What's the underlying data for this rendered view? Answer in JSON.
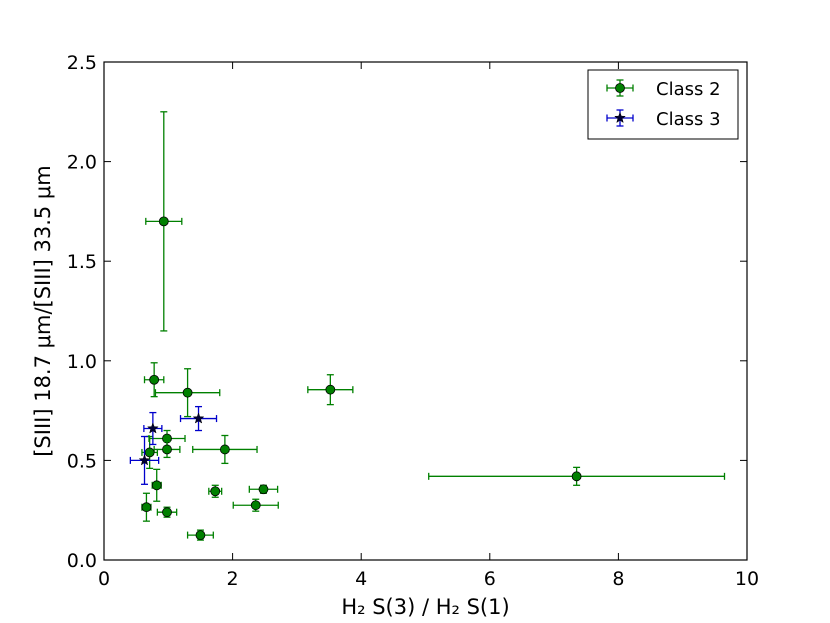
{
  "chart_data": {
    "type": "scatter",
    "xlim": [
      0,
      10
    ],
    "ylim": [
      0.0,
      2.5
    ],
    "xticks": [
      "0",
      "2",
      "4",
      "6",
      "8",
      "10"
    ],
    "yticks": [
      "0.0",
      "0.5",
      "1.0",
      "1.5",
      "2.0",
      "2.5"
    ],
    "xlabel": "H₂ S(3) / H₂ S(1)",
    "ylabel": "[SIII] 18.7 μm/[SIII] 33.5 μm",
    "grid": false,
    "legend_position": "top-right",
    "series": [
      {
        "name": "Class 2",
        "color": "#008000",
        "marker": "circle",
        "points": [
          {
            "x": 0.93,
            "y": 1.7,
            "xerr": 0.28,
            "yerr": 0.55
          },
          {
            "x": 0.78,
            "y": 0.905,
            "xerr": 0.15,
            "yerr": 0.085
          },
          {
            "x": 1.3,
            "y": 0.84,
            "xerr": 0.5,
            "yerr": 0.12
          },
          {
            "x": 3.52,
            "y": 0.855,
            "xerr": 0.35,
            "yerr": 0.075
          },
          {
            "x": 0.98,
            "y": 0.61,
            "xerr": 0.28,
            "yerr": 0.04
          },
          {
            "x": 0.98,
            "y": 0.555,
            "xerr": 0.2,
            "yerr": 0.04
          },
          {
            "x": 1.88,
            "y": 0.555,
            "xerr": 0.5,
            "yerr": 0.07
          },
          {
            "x": 7.35,
            "y": 0.42,
            "xerr": 2.3,
            "yerr": 0.045
          },
          {
            "x": 0.71,
            "y": 0.54,
            "xerr": 0.12,
            "yerr": 0.08
          },
          {
            "x": 0.82,
            "y": 0.375,
            "xerr": 0.07,
            "yerr": 0.08
          },
          {
            "x": 0.66,
            "y": 0.265,
            "xerr": 0.07,
            "yerr": 0.07
          },
          {
            "x": 0.98,
            "y": 0.24,
            "xerr": 0.15,
            "yerr": 0.025
          },
          {
            "x": 1.73,
            "y": 0.345,
            "xerr": 0.1,
            "yerr": 0.03
          },
          {
            "x": 2.48,
            "y": 0.355,
            "xerr": 0.22,
            "yerr": 0.02
          },
          {
            "x": 2.36,
            "y": 0.275,
            "xerr": 0.35,
            "yerr": 0.03
          },
          {
            "x": 1.5,
            "y": 0.125,
            "xerr": 0.2,
            "yerr": 0.025
          }
        ]
      },
      {
        "name": "Class 3",
        "color": "#0000cc",
        "marker": "star",
        "points": [
          {
            "x": 0.76,
            "y": 0.66,
            "xerr": 0.14,
            "yerr": 0.08
          },
          {
            "x": 1.47,
            "y": 0.71,
            "xerr": 0.28,
            "yerr": 0.06
          },
          {
            "x": 0.63,
            "y": 0.5,
            "xerr": 0.22,
            "yerr": 0.12
          }
        ]
      }
    ]
  },
  "legend": {
    "items": [
      {
        "label": "Class 2",
        "color": "#008000",
        "marker": "circle"
      },
      {
        "label": "Class 3",
        "color": "#0000cc",
        "marker": "star"
      }
    ]
  }
}
